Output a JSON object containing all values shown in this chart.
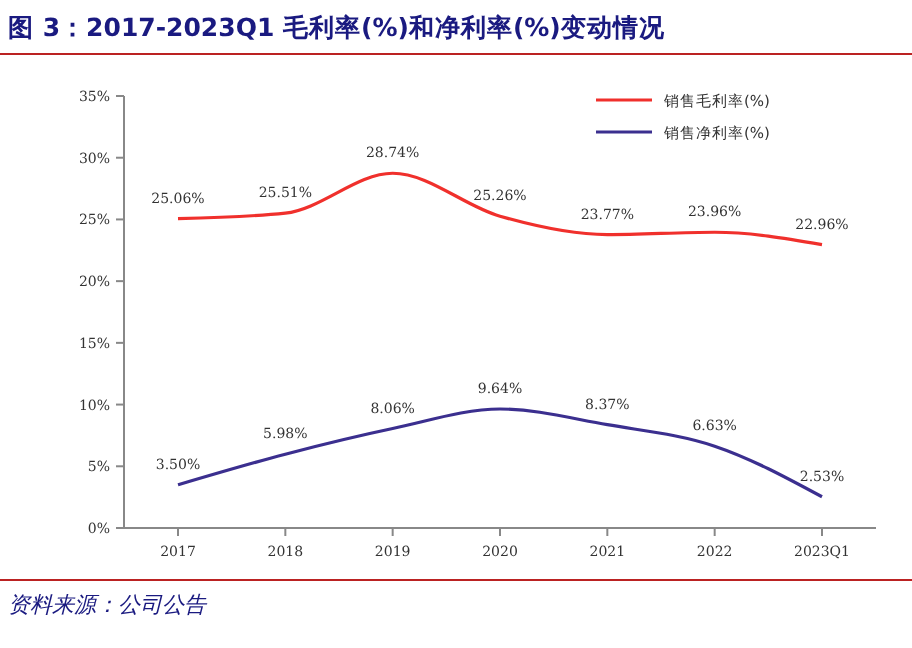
{
  "chart_data": {
    "type": "line",
    "title": "图 3：2017-2023Q1 毛利率(%)和净利率(%)变动情况",
    "categories": [
      "2017",
      "2018",
      "2019",
      "2020",
      "2021",
      "2022",
      "2023Q1"
    ],
    "series": [
      {
        "name": "销售毛利率(%)",
        "color": "#f0302c",
        "values": [
          25.06,
          25.51,
          28.74,
          25.26,
          23.77,
          23.96,
          22.96
        ],
        "value_labels": [
          "25.06%",
          "25.51%",
          "28.74%",
          "25.26%",
          "23.77%",
          "23.96%",
          "22.96%"
        ]
      },
      {
        "name": "销售净利率(%)",
        "color": "#3b2f8f",
        "values": [
          3.5,
          5.98,
          8.06,
          9.64,
          8.37,
          6.63,
          2.53
        ],
        "value_labels": [
          "3.50%",
          "5.98%",
          "8.06%",
          "9.64%",
          "8.37%",
          "6.63%",
          "2.53%"
        ]
      }
    ],
    "ylim": [
      0,
      35
    ],
    "yticks": [
      {
        "value": 0,
        "label": "0%"
      },
      {
        "value": 5,
        "label": "5%"
      },
      {
        "value": 10,
        "label": "10%"
      },
      {
        "value": 15,
        "label": "15%"
      },
      {
        "value": 20,
        "label": "20%"
      },
      {
        "value": 25,
        "label": "25%"
      },
      {
        "value": 30,
        "label": "30%"
      },
      {
        "value": 35,
        "label": "35%"
      }
    ],
    "legend": "top right",
    "grid": false,
    "marker": "none",
    "line_style": "solid",
    "annotations": [
      "资料来源：公司公告"
    ]
  }
}
